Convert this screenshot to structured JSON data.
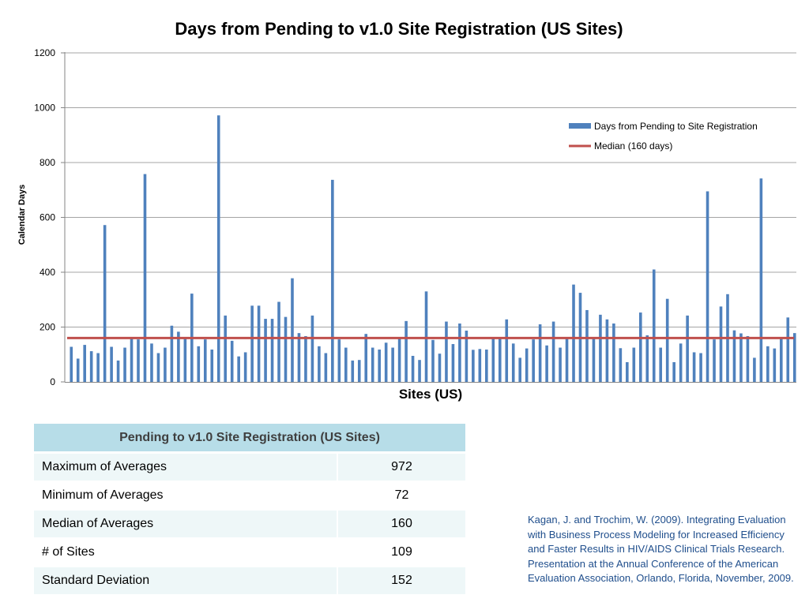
{
  "chart_data": {
    "type": "bar",
    "title": "Days from Pending to v1.0 Site Registration (US Sites)",
    "xlabel": "Sites (US)",
    "ylabel": "Calendar Days",
    "ylim": [
      0,
      1200
    ],
    "yticks": [
      0,
      200,
      400,
      600,
      800,
      1000,
      1200
    ],
    "grid": true,
    "legend_position": "top-right",
    "series": [
      {
        "name": "Days from Pending to Site Registration",
        "kind": "bar",
        "color": "#4f81bd",
        "values": [
          128,
          85,
          135,
          112,
          105,
          572,
          128,
          78,
          125,
          163,
          155,
          758,
          140,
          105,
          125,
          205,
          183,
          160,
          322,
          130,
          155,
          118,
          972,
          242,
          150,
          93,
          108,
          278,
          278,
          230,
          230,
          292,
          237,
          378,
          178,
          167,
          242,
          130,
          105,
          737,
          155,
          125,
          78,
          80,
          175,
          125,
          118,
          143,
          125,
          160,
          222,
          95,
          80,
          330,
          153,
          103,
          220,
          138,
          213,
          187,
          117,
          120,
          118,
          160,
          160,
          228,
          140,
          88,
          122,
          155,
          210,
          133,
          220,
          125,
          160,
          355,
          325,
          262,
          160,
          245,
          228,
          213,
          123,
          72,
          125,
          253,
          170,
          410,
          125,
          303,
          72,
          140,
          242,
          108,
          105,
          695,
          155,
          275,
          320,
          188,
          177,
          167,
          88,
          742,
          130,
          122,
          158,
          235,
          178
        ]
      },
      {
        "name": "Median (160 days)",
        "kind": "line",
        "color": "#c0504d",
        "value": 160
      }
    ]
  },
  "table": {
    "header": "Pending to v1.0 Site Registration (US Sites)",
    "rows": [
      {
        "label": "Maximum of Averages",
        "value": "972"
      },
      {
        "label": "Minimum of Averages",
        "value": "72"
      },
      {
        "label": "Median of Averages",
        "value": "160"
      },
      {
        "label": "# of Sites",
        "value": "109"
      },
      {
        "label": "Standard Deviation",
        "value": "152"
      }
    ]
  },
  "citation": "Kagan, J. and Trochim, W. (2009). Integrating Evaluation with Business Process Modeling for Increased Efficiency and Faster Results in HIV/AIDS Clinical Trials Research. Presentation at the Annual Conference of the American Evaluation Association, Orlando, Florida, November, 2009."
}
